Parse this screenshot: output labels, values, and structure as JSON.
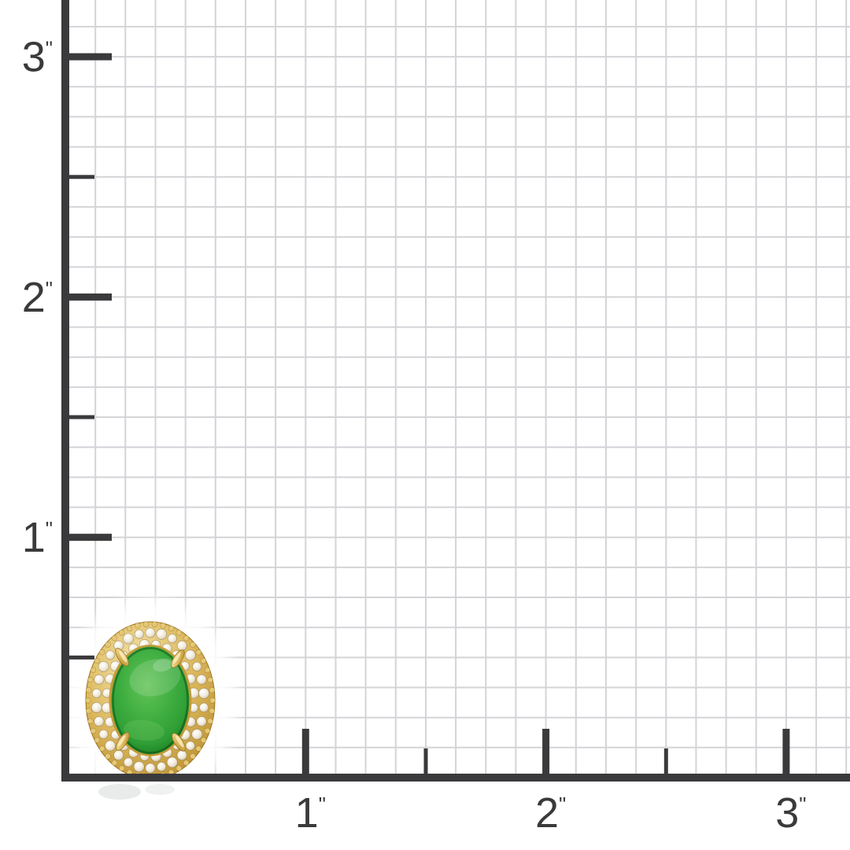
{
  "meta": {
    "description": "size-reference measurement grid with product photo at origin",
    "unit": "inches"
  },
  "colors": {
    "background": "#ffffff",
    "grid_line": "#d4d4d8",
    "axis": "#3a3a3c",
    "label_text": "#3a3a3c",
    "gold_light": "#f6e8b0",
    "gold_mid": "#ddb95e",
    "gold_dark": "#b5882a",
    "gold_edge": "#9a731f",
    "jade_light": "#64c457",
    "jade_mid": "#2f9e35",
    "jade_dark": "#15701c",
    "jade_rim": "#0f5c16",
    "diamond_center": "#ffffff",
    "diamond_mid": "#f2ecdd",
    "diamond_edge": "#cfc5ad",
    "reflection": "#c9cccc"
  },
  "y_axis": {
    "major_ticks": [
      {
        "value": 3,
        "label": "3",
        "unit_mark": "\""
      },
      {
        "value": 2,
        "label": "2",
        "unit_mark": "\""
      },
      {
        "value": 1,
        "label": "1",
        "unit_mark": "\""
      }
    ],
    "minor_ticks": [
      2.5,
      1.5,
      0.5
    ]
  },
  "x_axis": {
    "major_ticks": [
      {
        "value": 1,
        "label": "1",
        "unit_mark": "\""
      },
      {
        "value": 2,
        "label": "2",
        "unit_mark": "\""
      },
      {
        "value": 3,
        "label": "3",
        "unit_mark": "\""
      }
    ],
    "minor_ticks": [
      1.5,
      2.5
    ]
  },
  "product": {
    "name": "green-jade-oval-cabochon-diamond-halo-gold-stud",
    "approx_width_in": 0.53,
    "approx_height_in": 0.66
  }
}
